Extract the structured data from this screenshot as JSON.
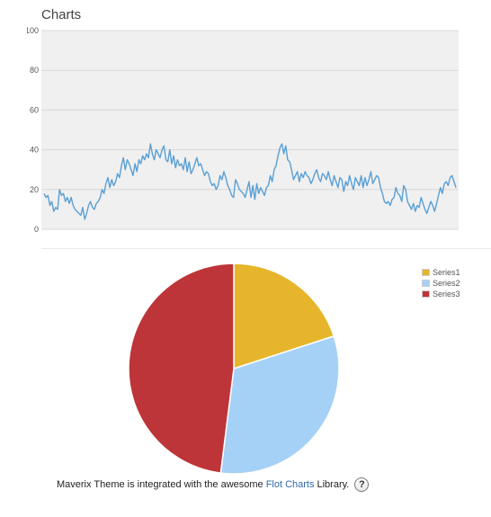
{
  "header": {
    "title": "Charts"
  },
  "colors": {
    "plot_bg": "#f0f0f0",
    "grid": "#d8d8d8",
    "line": "#5a9fd4",
    "series1": "#e6b52b",
    "series2": "#a5d1f7",
    "series3": "#bd3538"
  },
  "chart_data": [
    {
      "type": "line",
      "title": "",
      "xlabel": "",
      "ylabel": "",
      "ylim": [
        0,
        100
      ],
      "yticks": [
        0,
        20,
        40,
        60,
        80,
        100
      ],
      "grid": true,
      "series": [
        {
          "values": [
            18,
            16,
            17,
            12,
            14,
            9,
            11,
            10,
            20,
            17,
            18,
            14,
            16,
            13,
            16,
            12,
            10,
            9,
            8,
            7,
            11,
            5,
            8,
            12,
            14,
            11,
            10,
            13,
            14,
            16,
            20,
            18,
            23,
            26,
            21,
            25,
            22,
            24,
            28,
            26,
            32,
            36,
            30,
            35,
            33,
            30,
            27,
            33,
            29,
            35,
            33,
            37,
            35,
            38,
            36,
            43,
            38,
            35,
            40,
            38,
            36,
            40,
            42,
            35,
            34,
            40,
            33,
            37,
            31,
            35,
            32,
            33,
            30,
            36,
            29,
            34,
            28,
            30,
            33,
            36,
            32,
            33,
            30,
            27,
            29,
            28,
            24,
            22,
            23,
            20,
            22,
            27,
            25,
            29,
            26,
            22,
            20,
            17,
            16,
            25,
            23,
            20,
            19,
            18,
            16,
            20,
            24,
            16,
            22,
            15,
            23,
            18,
            21,
            19,
            17,
            21,
            22,
            27,
            24,
            30,
            32,
            37,
            41,
            43,
            38,
            42,
            35,
            34,
            30,
            25,
            27,
            29,
            24,
            28,
            26,
            29,
            27,
            26,
            23,
            25,
            28,
            30,
            26,
            24,
            28,
            27,
            25,
            29,
            25,
            22,
            27,
            24,
            21,
            26,
            25,
            19,
            24,
            22,
            27,
            23,
            20,
            26,
            24,
            22,
            27,
            21,
            26,
            22,
            25,
            29,
            23,
            25,
            27,
            26,
            21,
            18,
            14,
            13,
            14,
            12,
            15,
            16,
            21,
            18,
            17,
            14,
            22,
            20,
            14,
            12,
            10,
            13,
            9,
            12,
            11,
            16,
            13,
            10,
            8,
            11,
            14,
            12,
            9,
            13,
            17,
            21,
            18,
            23,
            24,
            22,
            26,
            27,
            24,
            21
          ]
        }
      ]
    },
    {
      "type": "pie",
      "title": "",
      "legend_position": "top-right",
      "categories": [
        "Series1",
        "Series2",
        "Series3"
      ],
      "values": [
        20,
        32,
        48
      ]
    }
  ],
  "footer": {
    "text_before": "Maverix Theme is integrated with the awesome",
    "link_text": "Flot Charts",
    "text_after": "Library.",
    "help_glyph": "?"
  }
}
